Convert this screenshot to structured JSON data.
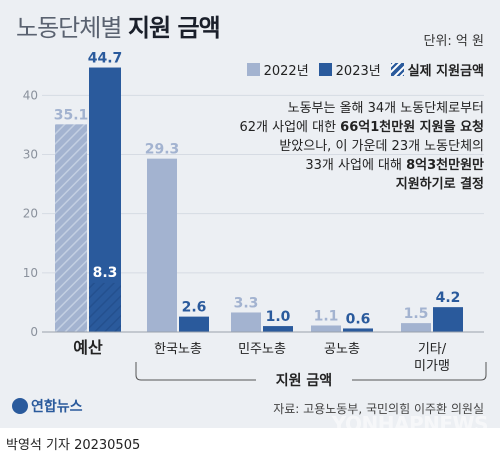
{
  "header": {
    "title_light": "노동단체별",
    "title_bold": "지원 금액",
    "unit": "단위: 억 원"
  },
  "legend": {
    "items": [
      {
        "label": "2022년",
        "color": "#a3b3d0"
      },
      {
        "label": "2023년",
        "color": "#2a5a9c"
      },
      {
        "label": "실제 지원금액",
        "color": "#2a5a9c",
        "hatched": true
      }
    ]
  },
  "annotation": {
    "line1": "노동부는 올해 34개 노동단체로부터",
    "line2_plain": "62개 사업에 대한 ",
    "line2_bold": "66억1천만원 지원을 요청",
    "line3": "받았으나, 이 가운데 23개 노동단체의",
    "line4_plain": "33개 사업에 대해 ",
    "line4_bold": "8억3천만원만",
    "line5_bold": "지원하기로 결정"
  },
  "chart_data": {
    "type": "bar",
    "title": "노동단체별 지원 금액",
    "unit": "억 원",
    "categories": [
      "예산",
      "한국노총",
      "민주노총",
      "공노총",
      "기타/미가맹"
    ],
    "category_lines": [
      [
        "예산"
      ],
      [
        "한국노총"
      ],
      [
        "민주노총"
      ],
      [
        "공노총"
      ],
      [
        "기타/",
        "미가맹"
      ]
    ],
    "series": [
      {
        "name": "2022년",
        "values": [
          35.1,
          29.3,
          3.3,
          1.1,
          1.5
        ],
        "color": "#a3b3d0"
      },
      {
        "name": "2023년",
        "values": [
          44.7,
          2.6,
          1.0,
          0.6,
          4.2
        ],
        "color": "#2a5a9c"
      }
    ],
    "actual_support": {
      "name": "실제 지원금액",
      "category": "예산",
      "value": 8.3
    },
    "group_label": "지원 금액",
    "yticks": [
      0,
      10,
      20,
      30,
      40
    ],
    "ylim": [
      0,
      48
    ],
    "grid": true
  },
  "footer": {
    "logo_text": "연합뉴스",
    "source": "자료: 고용노동부, 국민의힘 이주환 의원실",
    "watermark": "YONHAPNEWS",
    "credit": "박영석 기자  20230505"
  }
}
